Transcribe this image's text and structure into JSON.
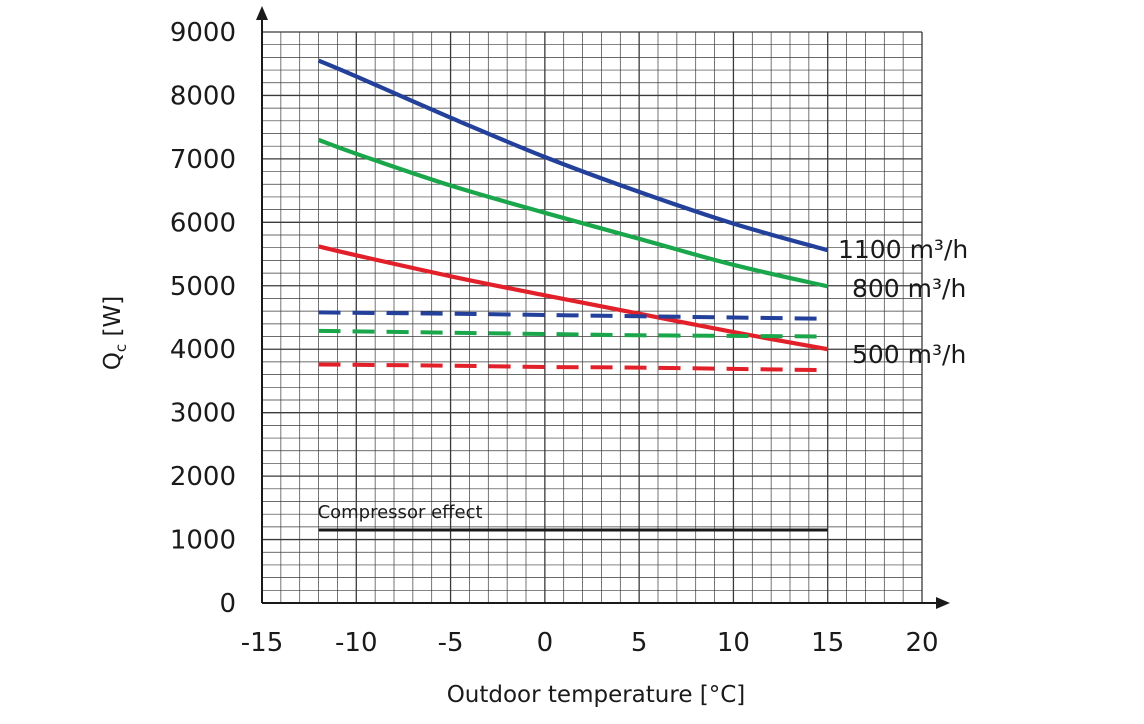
{
  "chart_data": {
    "type": "line",
    "title": "",
    "xlabel": "Outdoor temperature [°C]",
    "ylabel": {
      "main": "Q",
      "sub": "c",
      "unit": " [W]"
    },
    "xlim": [
      -15,
      20
    ],
    "ylim": [
      0,
      9000
    ],
    "xticks": [
      -15,
      -10,
      -5,
      0,
      5,
      10,
      15,
      20
    ],
    "yticks": [
      0,
      1000,
      2000,
      3000,
      4000,
      5000,
      6000,
      7000,
      8000,
      9000
    ],
    "grid": true,
    "series": [
      {
        "name": "1100 m³/h",
        "style": "solid",
        "color": "#23409a",
        "x": [
          -12,
          -10,
          -5,
          0,
          5,
          10,
          15
        ],
        "y": [
          8550,
          8300,
          7650,
          7030,
          6480,
          5980,
          5560
        ]
      },
      {
        "name": "800 m³/h",
        "style": "solid",
        "color": "#1aa64a",
        "x": [
          -12,
          -10,
          -5,
          0,
          5,
          10,
          15
        ],
        "y": [
          7300,
          7080,
          6580,
          6150,
          5740,
          5330,
          4990
        ]
      },
      {
        "name": "500 m³/h",
        "style": "solid",
        "color": "#e2202a",
        "x": [
          -12,
          -10,
          -5,
          0,
          5,
          10,
          15
        ],
        "y": [
          5620,
          5480,
          5150,
          4850,
          4560,
          4270,
          4000
        ]
      },
      {
        "name": "",
        "style": "dashed",
        "color": "#23409a",
        "x": [
          -12,
          -5,
          0,
          5,
          10,
          15
        ],
        "y": [
          4580,
          4560,
          4540,
          4520,
          4500,
          4480
        ]
      },
      {
        "name": "",
        "style": "dashed",
        "color": "#1aa64a",
        "x": [
          -12,
          -5,
          0,
          5,
          10,
          15
        ],
        "y": [
          4290,
          4260,
          4240,
          4220,
          4210,
          4200
        ]
      },
      {
        "name": "",
        "style": "dashed",
        "color": "#e2202a",
        "x": [
          -12,
          -5,
          0,
          5,
          10,
          15
        ],
        "y": [
          3760,
          3740,
          3720,
          3710,
          3690,
          3670
        ]
      },
      {
        "name": "Compressor effect",
        "style": "solid",
        "color": "#1a1a1a",
        "x": [
          -12,
          15
        ],
        "y": [
          1150,
          1150
        ]
      }
    ],
    "series_labels": [
      "1100 m³/h",
      "800 m³/h",
      "500 m³/h"
    ],
    "annotation": "Compressor effect"
  }
}
